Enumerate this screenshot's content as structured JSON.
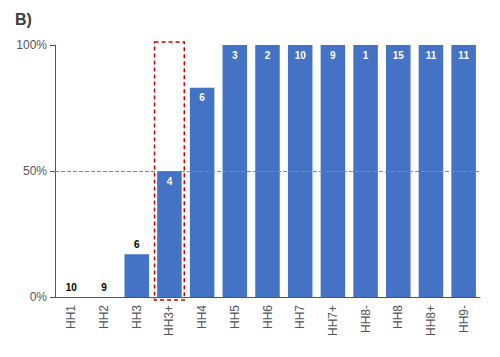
{
  "chart_data": {
    "type": "bar",
    "title": "B)",
    "categories": [
      "HH1",
      "HH2",
      "HH3",
      "HH3+",
      "HH4",
      "HH5",
      "HH6",
      "HH7",
      "HH7+",
      "HH8-",
      "HH8",
      "HH8+",
      "HH9-"
    ],
    "values": [
      0,
      0,
      17,
      50,
      83,
      100,
      100,
      100,
      100,
      100,
      100,
      100,
      100
    ],
    "n": [
      10,
      9,
      6,
      4,
      6,
      3,
      2,
      10,
      9,
      1,
      15,
      11,
      11
    ],
    "color": "#4472C4",
    "ylim": [
      0,
      100
    ],
    "yticks": [
      {
        "value": 0,
        "label": "0%"
      },
      {
        "value": 50,
        "label": "50%"
      },
      {
        "value": 100,
        "label": "100%"
      }
    ],
    "hline": 50,
    "hline_color": "#888888",
    "highlight": "HH3+",
    "highlight_color": "#CC0000",
    "grid": false
  }
}
